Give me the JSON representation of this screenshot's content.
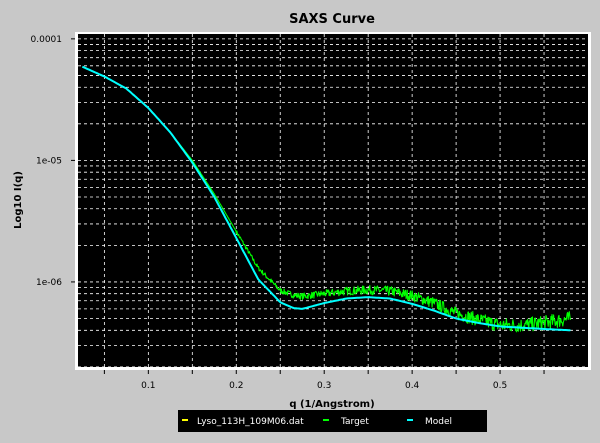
{
  "chart_data": {
    "type": "line",
    "title": "SAXS Curve",
    "xlabel": "q (1/Angstrom)",
    "ylabel": "Log10 I(q)",
    "xlim": [
      0.02,
      0.6
    ],
    "ylim_log10": [
      -6.7,
      -3.96
    ],
    "y_scale": "log",
    "grid": true,
    "legend_position": "bottom-center",
    "x_ticks": [
      {
        "value": 0.1,
        "label": "0.1"
      },
      {
        "value": 0.2,
        "label": "0.2"
      },
      {
        "value": 0.3,
        "label": "0.3"
      },
      {
        "value": 0.4,
        "label": "0.4"
      },
      {
        "value": 0.5,
        "label": "0.5"
      }
    ],
    "y_ticks": [
      {
        "value": 0.0001,
        "label": "0.0001"
      },
      {
        "value": 1e-05,
        "label": "1e-05"
      },
      {
        "value": 1e-06,
        "label": "1e-06"
      }
    ],
    "colors": {
      "plot_background": "#000000",
      "page_background": "#c8c8c8",
      "grid": "#ffffff",
      "target": "#00ff00",
      "model": "#00ffff",
      "file_marker": "#ffff00"
    },
    "series": [
      {
        "name": "Lyso_113H_109M06.dat",
        "color": "#ffff00",
        "x": [],
        "y": []
      },
      {
        "name": "Target",
        "color": "#00ff00",
        "noise": true,
        "x": [
          0.025,
          0.05,
          0.075,
          0.1,
          0.125,
          0.15,
          0.175,
          0.2,
          0.225,
          0.25,
          0.265,
          0.275,
          0.3,
          0.325,
          0.35,
          0.375,
          0.4,
          0.425,
          0.45,
          0.475,
          0.5,
          0.525,
          0.55,
          0.58
        ],
        "y": [
          5.9e-05,
          4.9e-05,
          3.9e-05,
          2.7e-05,
          1.7e-05,
          1e-05,
          5.3e-06,
          2.6e-06,
          1.3e-06,
          8.5e-07,
          7.8e-07,
          7.6e-07,
          8e-07,
          8.4e-07,
          8.6e-07,
          8.4e-07,
          7.7e-07,
          6.7e-07,
          5.5e-07,
          4.9e-07,
          4.4e-07,
          4.4e-07,
          4.6e-07,
          5e-07
        ]
      },
      {
        "name": "Model",
        "color": "#00ffff",
        "noise": false,
        "x": [
          0.025,
          0.05,
          0.075,
          0.1,
          0.125,
          0.15,
          0.175,
          0.2,
          0.225,
          0.25,
          0.265,
          0.275,
          0.3,
          0.325,
          0.35,
          0.375,
          0.4,
          0.425,
          0.45,
          0.475,
          0.5,
          0.525,
          0.55,
          0.58
        ],
        "y": [
          5.9e-05,
          4.9e-05,
          3.9e-05,
          2.7e-05,
          1.7e-05,
          9.6e-06,
          5e-06,
          2.3e-06,
          1.05e-06,
          6.8e-07,
          6.1e-07,
          6e-07,
          6.7e-07,
          7.3e-07,
          7.5e-07,
          7.3e-07,
          6.6e-07,
          5.8e-07,
          5e-07,
          4.6e-07,
          4.3e-07,
          4.2e-07,
          4.1e-07,
          4e-07
        ]
      }
    ]
  }
}
